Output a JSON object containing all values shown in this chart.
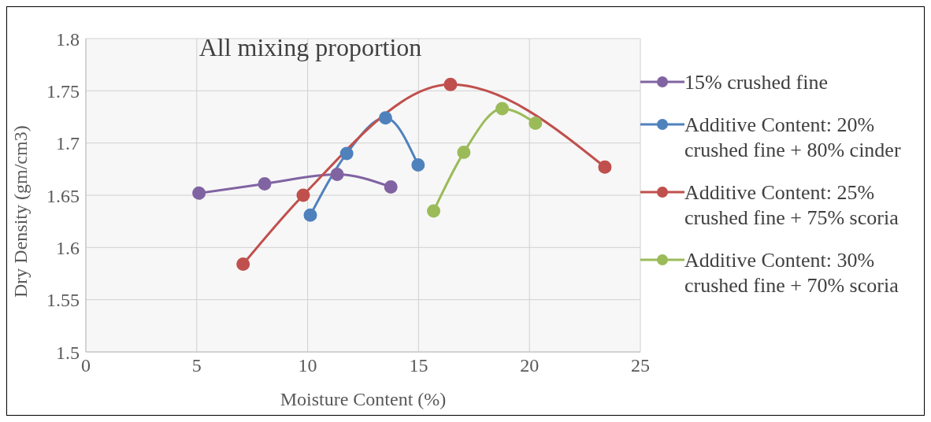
{
  "chart_data": {
    "type": "line",
    "title": "All mixing proportion",
    "xlabel": "Moisture Content (%)",
    "ylabel": "Dry Density (gm/cm3)",
    "xlim": [
      0,
      25
    ],
    "xticks": [
      0,
      5,
      10,
      15,
      20,
      25
    ],
    "ylim": [
      1.5,
      1.8
    ],
    "yticks": [
      1.5,
      1.55,
      1.6,
      1.65,
      1.7,
      1.75,
      1.8
    ],
    "grid": true,
    "legend": "right",
    "marker": "circle",
    "line_style": "solid",
    "series": [
      {
        "name": "15% crushed fine",
        "color": "#8064a2",
        "x": [
          5.1,
          8.06,
          11.33,
          13.75
        ],
        "values": [
          1.652,
          1.661,
          1.67,
          1.658
        ]
      },
      {
        "name": "Additive Content: 20% crushed fine + 80% cinder",
        "color": "#4f81bd",
        "x": [
          10.12,
          11.76,
          13.51,
          14.98
        ],
        "values": [
          1.631,
          1.69,
          1.724,
          1.679
        ]
      },
      {
        "name": "Additive Content: 25% crushed fine + 75% scoria",
        "color": "#c0504d",
        "x": [
          7.09,
          9.8,
          16.44,
          23.4
        ],
        "values": [
          1.584,
          1.65,
          1.756,
          1.677
        ]
      },
      {
        "name": "Additive Content: 30% crushed fine + 70% scoria",
        "color": "#9bbb59",
        "x": [
          15.68,
          17.04,
          18.77,
          20.27
        ],
        "values": [
          1.635,
          1.691,
          1.733,
          1.719
        ]
      }
    ]
  }
}
